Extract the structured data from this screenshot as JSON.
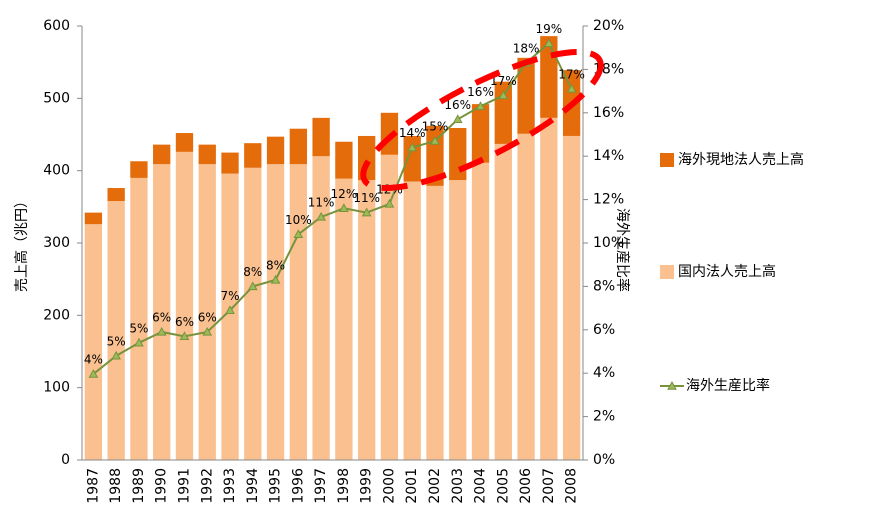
{
  "chart_data": {
    "type": "bar-line",
    "y_label": "売上高（兆円）",
    "y2_label": "海外生産比率",
    "categories": [
      "1987",
      "1988",
      "1989",
      "1990",
      "1991",
      "1992",
      "1993",
      "1994",
      "1995",
      "1996",
      "1997",
      "1998",
      "1999",
      "2000",
      "2001",
      "2002",
      "2003",
      "2004",
      "2005",
      "2006",
      "2007",
      "2008"
    ],
    "series": [
      {
        "name": "国内法人売上高",
        "color": "#fac090",
        "values": [
          326,
          358,
          390,
          409,
          426,
          409,
          396,
          404,
          409,
          409,
          420,
          389,
          387,
          422,
          385,
          379,
          387,
          411,
          437,
          451,
          473,
          448
        ]
      },
      {
        "name": "海外現地法人売上高",
        "color": "#e46c0a",
        "values": [
          16,
          18,
          23,
          27,
          26,
          27,
          29,
          34,
          38,
          49,
          53,
          51,
          61,
          58,
          63,
          83,
          72,
          81,
          86,
          105,
          113,
          91
        ]
      },
      {
        "name": "海外生産比率",
        "color": "#77933c",
        "axis": "y2",
        "values": [
          3.96,
          4.8,
          5.4,
          5.9,
          5.7,
          5.9,
          6.9,
          8.0,
          8.3,
          10.4,
          11.2,
          11.6,
          11.4,
          11.8,
          14.4,
          14.7,
          15.7,
          16.3,
          16.8,
          18.3,
          19.2,
          17.1
        ],
        "value_labels": [
          "4%",
          "5%",
          "5%",
          "6%",
          "6%",
          "6%",
          "7%",
          "8%",
          "8%",
          "10%",
          "11%",
          "12%",
          "11%",
          "12%",
          "14%",
          "15%",
          "16%",
          "16%",
          "17%",
          "18%",
          "19%",
          "17%"
        ]
      }
    ],
    "ylim": [
      0,
      600
    ],
    "yticks": [
      0,
      100,
      200,
      300,
      400,
      500,
      600
    ],
    "y2lim": [
      0,
      20
    ],
    "y2ticks": [
      {
        "value": 0,
        "label": "0%"
      },
      {
        "value": 2,
        "label": "2%"
      },
      {
        "value": 4,
        "label": "4%"
      },
      {
        "value": 6,
        "label": "6%"
      },
      {
        "value": 8,
        "label": "8%"
      },
      {
        "value": 10,
        "label": "10%"
      },
      {
        "value": 12,
        "label": "12%"
      },
      {
        "value": 14,
        "label": "14%"
      },
      {
        "value": 16,
        "label": "16%"
      },
      {
        "value": 18,
        "label": "18%"
      },
      {
        "value": 20,
        "label": "20%"
      }
    ],
    "stacked": true,
    "grid": false
  }
}
